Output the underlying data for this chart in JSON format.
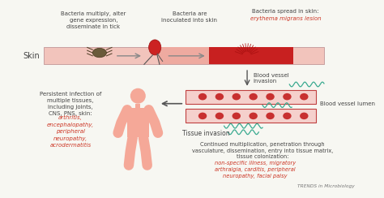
{
  "bg_color": "#f7f7f2",
  "skin_bar_color": "#f2c4bc",
  "skin_bar_mid": "#eeaaa0",
  "skin_bar_red": "#c82020",
  "vessel_fill": "#f5d0cc",
  "vessel_border": "#c04040",
  "rbc_color": "#c83030",
  "human_color": "#f5a898",
  "teal_color": "#3aaa90",
  "red_text": "#cc3322",
  "black_text": "#444444",
  "gray_arrow": "#888888",
  "dark_arrow": "#555555",
  "label_skin": "Skin",
  "label_top1": "Bacteria multiply, alter\ngene expression,\ndisseminate in tick",
  "label_top2": "Bacteria are\ninoculated into skin",
  "label_top3_black": "Bacteria spread in skin:",
  "label_top3_red": "erythema migrans lesion",
  "label_bv_invasion": "Blood vessel\ninvasion",
  "label_bv_lumen": "Blood vessel lumen",
  "label_tissue": "Tissue invasion",
  "label_persistent_black": "Persistent infection of\nmultiple tissues,\nincluding joints,\nCNS, PNS, skin:",
  "label_persistent_red": "arthritis,\nencephalopathy,\nperipheral\nneuropathy,\nacrodermatitis",
  "label_continued_black": "Continued multiplication, penetration through\nvasculature, dissemination, entry into tissue matrix,\ntissue colonization:",
  "label_continued_red": "non-specific illness, migratory\narthralgia, carditis, peripheral\nneuropathy, facial palsy",
  "label_trends": "TRENDS in Microbiology"
}
